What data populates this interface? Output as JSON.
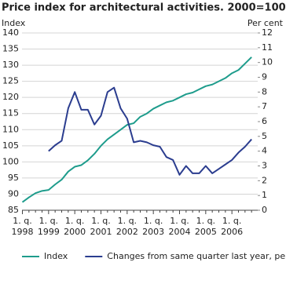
{
  "chart_data": {
    "type": "line",
    "title": "Price index for architectural activities. 2000=100",
    "y_label": "Index",
    "y2_label": "Per cent",
    "x_quarter_label": "1. q.",
    "categories": [
      "1998",
      null,
      null,
      null,
      "1999",
      null,
      null,
      null,
      "2000",
      null,
      null,
      null,
      "2001",
      null,
      null,
      null,
      "2002",
      null,
      null,
      null,
      "2003",
      null,
      null,
      null,
      "2004",
      null,
      null,
      null,
      "2005",
      null,
      null,
      null,
      "2006",
      null,
      null,
      null
    ],
    "series": [
      {
        "name": "Index",
        "color": "#1e9c8c",
        "axis": "y",
        "values": [
          87.5,
          89,
          90.3,
          91,
          91.3,
          93,
          94.5,
          97,
          98.5,
          99,
          100.5,
          102.5,
          105,
          107,
          108.5,
          110,
          111.5,
          112,
          114,
          115,
          116.5,
          117.5,
          118.5,
          119,
          120,
          121,
          121.5,
          122.5,
          123.5,
          124,
          125,
          126,
          127.5,
          128.5,
          130.5,
          132.5
        ]
      },
      {
        "name": "Changes from same quarter last year, per cent",
        "color": "#2b3d8f",
        "axis": "y2",
        "values": [
          null,
          null,
          null,
          null,
          4.0,
          4.4,
          4.7,
          6.9,
          8.0,
          6.8,
          6.8,
          5.8,
          6.4,
          8.0,
          8.3,
          6.9,
          6.2,
          4.6,
          4.7,
          4.6,
          4.4,
          4.3,
          3.6,
          3.4,
          2.4,
          3.0,
          2.5,
          2.5,
          3.0,
          2.5,
          2.8,
          3.1,
          3.4,
          3.9,
          4.3,
          4.8
        ]
      }
    ],
    "ylim": [
      85,
      140
    ],
    "yticks": [
      85,
      90,
      95,
      100,
      105,
      110,
      115,
      120,
      125,
      130,
      135,
      140
    ],
    "y2lim": [
      0,
      12
    ],
    "y2ticks": [
      0,
      1,
      2,
      3,
      4,
      5,
      6,
      7,
      8,
      9,
      10,
      11,
      12
    ],
    "grid": true
  }
}
